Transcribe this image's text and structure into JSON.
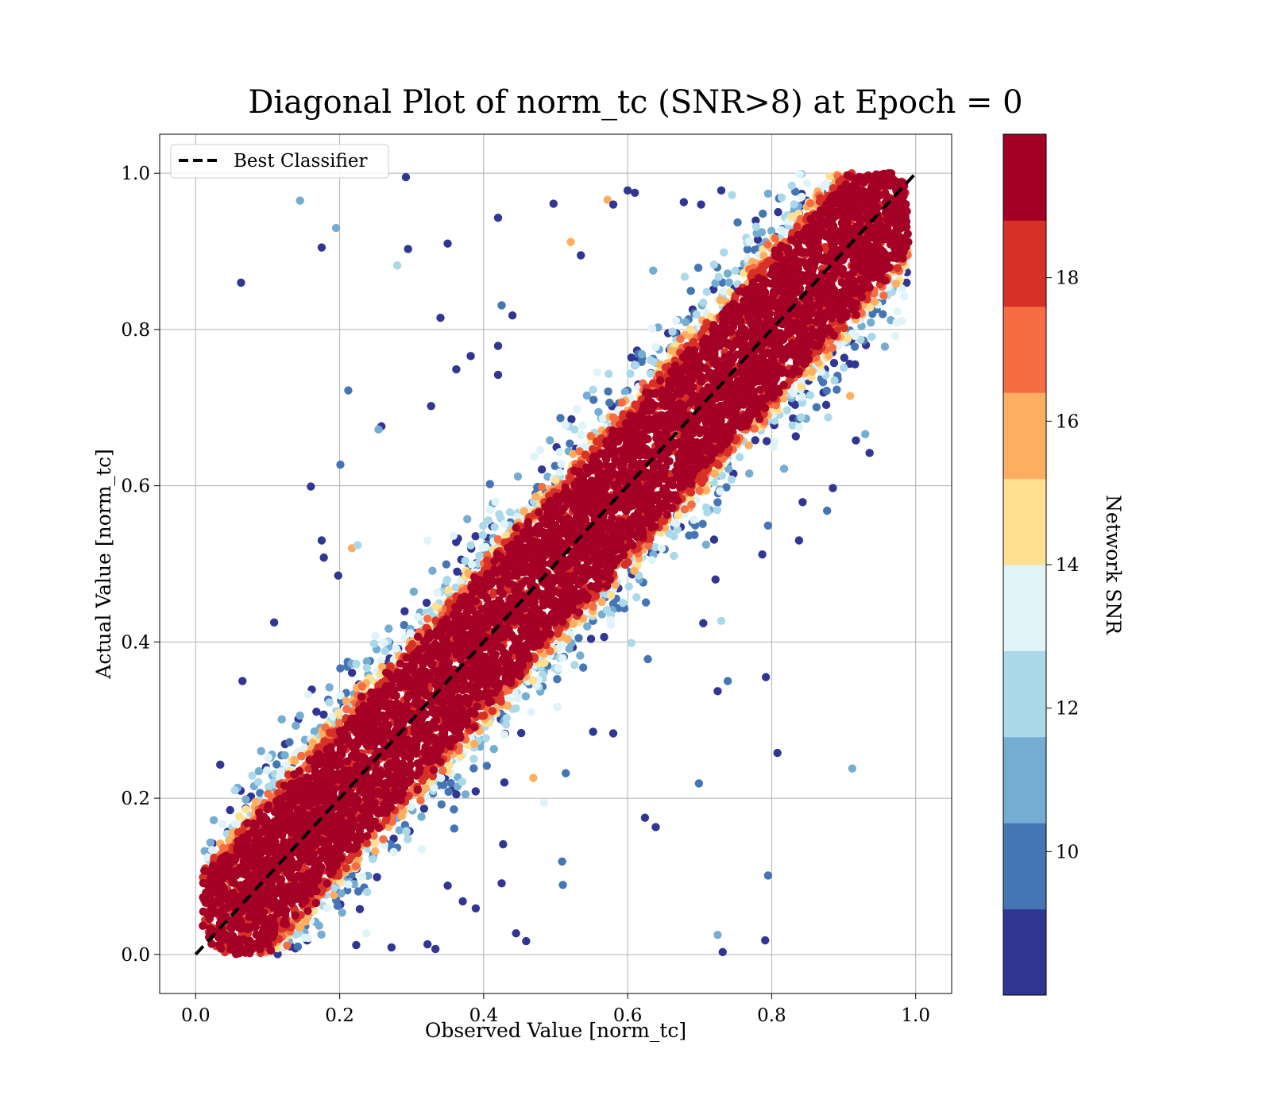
{
  "chart_data": {
    "type": "scatter",
    "title": "Diagonal Plot of norm_tc (SNR>8) at Epoch = 0",
    "xlabel": "Observed Value [norm_tc]",
    "ylabel": "Actual Value [norm_tc]",
    "xlim": [
      -0.05,
      1.05
    ],
    "ylim": [
      -0.05,
      1.05
    ],
    "xticks": [
      "0.0",
      "0.2",
      "0.4",
      "0.6",
      "0.8",
      "1.0"
    ],
    "yticks": [
      "0.0",
      "0.2",
      "0.4",
      "0.6",
      "0.8",
      "1.0"
    ],
    "grid": true,
    "legend": {
      "position": "top-left",
      "entries": [
        {
          "label": "Best Classifier",
          "style": "black dashed line"
        }
      ]
    },
    "reference_line": {
      "label": "Best Classifier",
      "x": [
        0,
        1
      ],
      "y": [
        0,
        1
      ],
      "color": "#000000",
      "dash": true
    },
    "point_distribution": {
      "center": "y = x",
      "high_snr_band_halfwidth": 0.085,
      "n_points_approx": 9000
    },
    "colorbar": {
      "label": "Network SNR",
      "range": [
        8,
        20
      ],
      "ticks": [
        "10",
        "12",
        "14",
        "16",
        "18"
      ],
      "colormap": "RdYlBu_r",
      "colors": [
        "#313695",
        "#4575b4",
        "#74add1",
        "#abd9e9",
        "#e0f3f8",
        "#fee090",
        "#fdae61",
        "#f46d43",
        "#d73027",
        "#a50026"
      ]
    },
    "outliers": [
      {
        "x": 0.063,
        "y": 0.86,
        "snr": 8.5
      },
      {
        "x": 0.145,
        "y": 0.965,
        "snr": 10.5
      },
      {
        "x": 0.175,
        "y": 0.905,
        "snr": 8.5
      },
      {
        "x": 0.195,
        "y": 0.93,
        "snr": 11.0
      },
      {
        "x": 0.292,
        "y": 0.995,
        "snr": 8.5
      },
      {
        "x": 0.28,
        "y": 0.882,
        "snr": 12.0
      },
      {
        "x": 0.295,
        "y": 0.903,
        "snr": 8.5
      },
      {
        "x": 0.35,
        "y": 0.91,
        "snr": 8.5
      },
      {
        "x": 0.34,
        "y": 0.815,
        "snr": 8.5
      },
      {
        "x": 0.42,
        "y": 0.943,
        "snr": 8.5
      },
      {
        "x": 0.497,
        "y": 0.961,
        "snr": 8.5
      },
      {
        "x": 0.572,
        "y": 0.966,
        "snr": 15.5
      },
      {
        "x": 0.58,
        "y": 0.96,
        "snr": 8.5
      },
      {
        "x": 0.6,
        "y": 0.978,
        "snr": 8.5
      },
      {
        "x": 0.61,
        "y": 0.975,
        "snr": 8.5
      },
      {
        "x": 0.521,
        "y": 0.912,
        "snr": 15.5
      },
      {
        "x": 0.535,
        "y": 0.895,
        "snr": 8.5
      },
      {
        "x": 0.425,
        "y": 0.831,
        "snr": 10.0
      },
      {
        "x": 0.44,
        "y": 0.818,
        "snr": 8.5
      },
      {
        "x": 0.212,
        "y": 0.722,
        "snr": 10.0
      },
      {
        "x": 0.258,
        "y": 0.676,
        "snr": 8.5
      },
      {
        "x": 0.254,
        "y": 0.672,
        "snr": 11.0
      },
      {
        "x": 0.201,
        "y": 0.627,
        "snr": 10.0
      },
      {
        "x": 0.16,
        "y": 0.599,
        "snr": 8.5
      },
      {
        "x": 0.175,
        "y": 0.53,
        "snr": 8.5
      },
      {
        "x": 0.178,
        "y": 0.508,
        "snr": 8.5
      },
      {
        "x": 0.198,
        "y": 0.485,
        "snr": 8.5
      },
      {
        "x": 0.217,
        "y": 0.52,
        "snr": 15.5
      },
      {
        "x": 0.225,
        "y": 0.524,
        "snr": 12.5
      },
      {
        "x": 0.109,
        "y": 0.425,
        "snr": 8.5
      },
      {
        "x": 0.065,
        "y": 0.35,
        "snr": 8.5
      },
      {
        "x": 0.327,
        "y": 0.702,
        "snr": 8.5
      },
      {
        "x": 0.362,
        "y": 0.749,
        "snr": 8.5
      },
      {
        "x": 0.382,
        "y": 0.766,
        "snr": 8.5
      },
      {
        "x": 0.42,
        "y": 0.779,
        "snr": 8.5
      },
      {
        "x": 0.42,
        "y": 0.742,
        "snr": 8.5
      },
      {
        "x": 0.745,
        "y": 0.972,
        "snr": 12.0
      },
      {
        "x": 0.73,
        "y": 0.978,
        "snr": 8.5
      },
      {
        "x": 0.678,
        "y": 0.963,
        "snr": 8.5
      },
      {
        "x": 0.702,
        "y": 0.96,
        "snr": 8.5
      },
      {
        "x": 0.792,
        "y": 0.355,
        "snr": 8.5
      },
      {
        "x": 0.808,
        "y": 0.258,
        "snr": 8.5
      },
      {
        "x": 0.699,
        "y": 0.219,
        "snr": 10.0
      },
      {
        "x": 0.795,
        "y": 0.101,
        "snr": 10.0
      },
      {
        "x": 0.791,
        "y": 0.018,
        "snr": 8.5
      },
      {
        "x": 0.732,
        "y": 0.003,
        "snr": 8.5
      },
      {
        "x": 0.725,
        "y": 0.025,
        "snr": 11.0
      },
      {
        "x": 0.912,
        "y": 0.238,
        "snr": 11.0
      },
      {
        "x": 0.877,
        "y": 0.568,
        "snr": 10.0
      },
      {
        "x": 0.624,
        "y": 0.175,
        "snr": 8.5
      },
      {
        "x": 0.639,
        "y": 0.163,
        "snr": 8.5
      },
      {
        "x": 0.725,
        "y": 0.337,
        "snr": 8.5
      },
      {
        "x": 0.739,
        "y": 0.35,
        "snr": 10.0
      },
      {
        "x": 0.705,
        "y": 0.424,
        "snr": 8.5
      },
      {
        "x": 0.628,
        "y": 0.378,
        "snr": 10.0
      },
      {
        "x": 0.427,
        "y": 0.141,
        "snr": 8.5
      },
      {
        "x": 0.425,
        "y": 0.091,
        "snr": 8.5
      },
      {
        "x": 0.445,
        "y": 0.027,
        "snr": 8.5
      },
      {
        "x": 0.459,
        "y": 0.017,
        "snr": 8.5
      },
      {
        "x": 0.509,
        "y": 0.119,
        "snr": 10.0
      },
      {
        "x": 0.51,
        "y": 0.089,
        "snr": 10.0
      },
      {
        "x": 0.469,
        "y": 0.226,
        "snr": 15.5
      },
      {
        "x": 0.484,
        "y": 0.194,
        "snr": 13.5
      },
      {
        "x": 0.35,
        "y": 0.088,
        "snr": 8.5
      },
      {
        "x": 0.371,
        "y": 0.068,
        "snr": 8.5
      },
      {
        "x": 0.389,
        "y": 0.059,
        "snr": 8.5
      },
      {
        "x": 0.272,
        "y": 0.009,
        "snr": 8.5
      },
      {
        "x": 0.322,
        "y": 0.013,
        "snr": 8.5
      },
      {
        "x": 0.333,
        "y": 0.007,
        "snr": 8.5
      },
      {
        "x": 0.223,
        "y": 0.012,
        "snr": 8.5
      },
      {
        "x": 0.228,
        "y": 0.058,
        "snr": 8.5
      },
      {
        "x": 0.514,
        "y": 0.232,
        "snr": 10.0
      },
      {
        "x": 0.552,
        "y": 0.285,
        "snr": 8.5
      },
      {
        "x": 0.58,
        "y": 0.283,
        "snr": 8.5
      },
      {
        "x": 0.936,
        "y": 0.642,
        "snr": 8.5
      },
      {
        "x": 0.917,
        "y": 0.658,
        "snr": 8.5
      },
      {
        "x": 0.93,
        "y": 0.666,
        "snr": 11.0
      },
      {
        "x": 0.909,
        "y": 0.715,
        "snr": 15.5
      },
      {
        "x": 0.885,
        "y": 0.597,
        "snr": 8.5
      },
      {
        "x": 0.843,
        "y": 0.579,
        "snr": 8.5
      },
      {
        "x": 0.795,
        "y": 0.549,
        "snr": 10.0
      },
      {
        "x": 0.787,
        "y": 0.512,
        "snr": 8.5
      },
      {
        "x": 0.838,
        "y": 0.53,
        "snr": 8.5
      },
      {
        "x": 0.73,
        "y": 0.427,
        "snr": 12.0
      },
      {
        "x": 0.722,
        "y": 0.48,
        "snr": 8.5
      },
      {
        "x": 0.72,
        "y": 0.531,
        "snr": 8.5
      }
    ]
  }
}
